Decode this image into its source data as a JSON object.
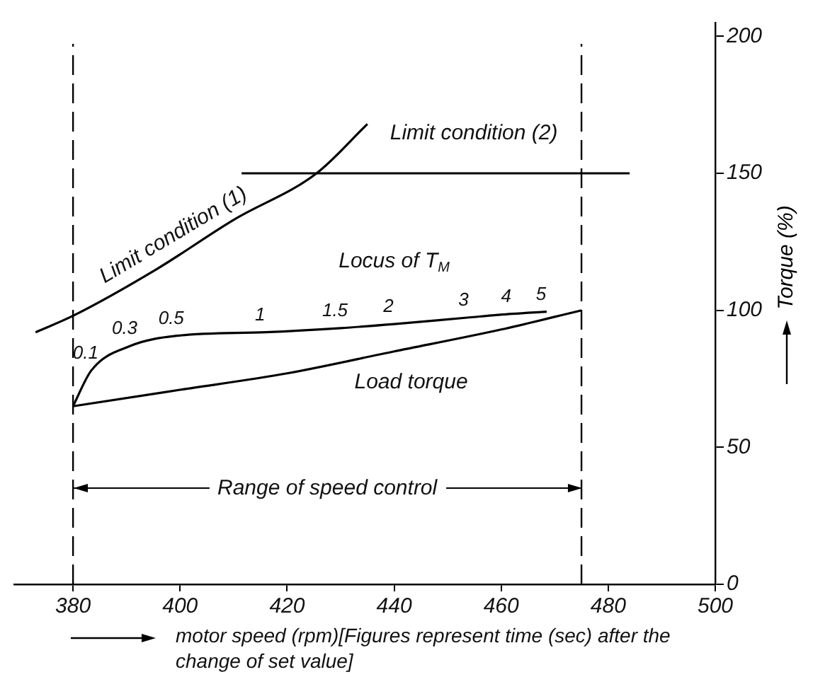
{
  "chart_data": {
    "type": "line",
    "xlabel": "motor speed (rpm)[Figures represent time (sec) after the change of set value]",
    "ylabel": "Torque (%)",
    "xlim": [
      369,
      500
    ],
    "xticks": [
      380,
      400,
      420,
      440,
      460,
      480,
      500
    ],
    "ylim": [
      0,
      205
    ],
    "yticks": [
      0,
      50,
      100,
      150,
      200
    ],
    "grid": false,
    "legend": false,
    "marker": "none",
    "line_style": "solid",
    "series": [
      {
        "name": "Limit condition (1)",
        "color": "#000000",
        "x": [
          373,
          380,
          395.6,
          410,
          425.5,
          435
        ],
        "values": [
          92,
          98,
          115,
          133,
          150,
          168
        ]
      },
      {
        "name": "Limit condition (2)",
        "color": "#000000",
        "x": [
          411.5,
          484
        ],
        "values": [
          150,
          150
        ]
      },
      {
        "name": "Locus of T$_{M}$",
        "color": "#000000",
        "x": [
          380,
          383.4,
          390.7,
          399.4,
          416,
          430,
          440,
          454,
          462,
          468.5
        ],
        "values": [
          65,
          78,
          87,
          90.7,
          92,
          93.5,
          95,
          97.4,
          98.7,
          99.5
        ]
      },
      {
        "name": "Load torque",
        "color": "#000000",
        "x": [
          380,
          400,
          420,
          440,
          460,
          475
        ],
        "values": [
          65,
          71,
          77,
          85,
          93,
          100
        ]
      }
    ],
    "ref_lines": [
      {
        "axis": "x",
        "value": 380,
        "color": "#000000",
        "line_style": "dashed"
      },
      {
        "axis": "x",
        "value": 475,
        "color": "#000000",
        "line_style": "dashed"
      }
    ],
    "annotations": [
      {
        "text": "Range of speed control",
        "x": 475,
        "y": 35
      },
      {
        "text": "0.1",
        "x": 383.4,
        "y": 78
      },
      {
        "text": "0.3",
        "x": 390.7,
        "y": 87
      },
      {
        "text": "0.5",
        "x": 399.4,
        "y": 90.7
      },
      {
        "text": "1",
        "x": 416,
        "y": 92
      },
      {
        "text": "1.5",
        "x": 430,
        "y": 93.5
      },
      {
        "text": "2",
        "x": 440,
        "y": 95
      },
      {
        "text": "3",
        "x": 454,
        "y": 97.4
      },
      {
        "text": "4",
        "x": 462,
        "y": 98.7
      },
      {
        "text": "5",
        "x": 468.5,
        "y": 99.5
      }
    ]
  }
}
